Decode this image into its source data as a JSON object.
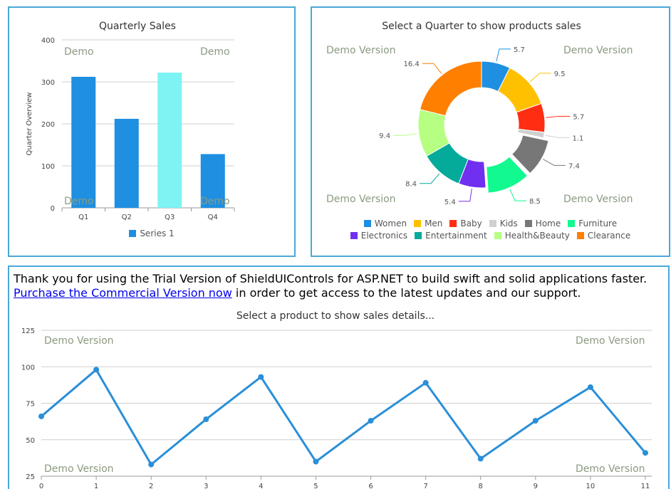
{
  "colors": {
    "panel_border": "#4aa8d8",
    "bar_default": "#1e8fe1",
    "bar_highlight": "#7ef3f4",
    "line": "#2a8fd8",
    "watermark": "#8a9a80"
  },
  "watermarks": {
    "bar": "Demo",
    "donut": "Demo Version",
    "line": "Demo Version"
  },
  "trial_notice": {
    "text_before": "Thank you for using the Trial Version of ShieldUIControls for ASP.NET to build swift and solid applications faster. ",
    "link_text": "Purchase the Commercial Version now",
    "text_after": " in order to get access to the latest updates and our support."
  },
  "chart_data": [
    {
      "type": "bar",
      "title": "Quarterly Sales",
      "ylabel": "Quarter Overview",
      "xlabel": "",
      "categories": [
        "Q1",
        "Q2",
        "Q3",
        "Q4"
      ],
      "values": [
        312,
        212,
        322,
        128
      ],
      "highlight_index": 2,
      "ylim": [
        0,
        400
      ],
      "yticks": [
        0,
        100,
        200,
        300,
        400
      ],
      "legend": [
        "Series 1"
      ],
      "grid": true
    },
    {
      "type": "pie",
      "title": "Select a Quarter to show products sales",
      "slices": [
        {
          "name": "Women",
          "value": 5.7,
          "color": "#1e8fe1",
          "label": "5.7"
        },
        {
          "name": "Men",
          "value": 9.5,
          "color": "#ffc000",
          "label": "9.5"
        },
        {
          "name": "Baby",
          "value": 5.7,
          "color": "#ff2e12",
          "label": "5.7"
        },
        {
          "name": "Kids",
          "value": 1.1,
          "color": "#d0d0d0",
          "label": "1.1"
        },
        {
          "name": "Home",
          "value": 7.4,
          "color": "#777777",
          "label": "7.4",
          "exploded": true
        },
        {
          "name": "Furniture",
          "value": 8.5,
          "color": "#12fa8f",
          "label": "8.5",
          "exploded": true
        },
        {
          "name": "Electronics",
          "value": 5.4,
          "color": "#7030f0",
          "label": "5.4"
        },
        {
          "name": "Entertainment",
          "value": 8.4,
          "color": "#04aa9a",
          "label": "8.4"
        },
        {
          "name": "Health&Beauty",
          "value": 9.4,
          "color": "#b6ff82",
          "label": "9.4"
        },
        {
          "name": "Clearance",
          "value": 16.4,
          "color": "#ff7f00",
          "label": "16.4"
        }
      ],
      "legend_rows": [
        [
          "Women",
          "Men",
          "Baby",
          "Kids",
          "Home",
          "Furniture"
        ],
        [
          "Electronics",
          "Entertainment",
          "Health&Beauty",
          "Clearance"
        ]
      ]
    },
    {
      "type": "line",
      "title": "Select a product to show sales details...",
      "x": [
        0,
        1,
        2,
        3,
        4,
        5,
        6,
        7,
        8,
        9,
        10,
        11
      ],
      "values": [
        66,
        98,
        33,
        64,
        93,
        35,
        63,
        89,
        37,
        63,
        86,
        41
      ],
      "ylim": [
        25,
        125
      ],
      "yticks": [
        25,
        50,
        75,
        100,
        125
      ],
      "grid": true
    }
  ]
}
